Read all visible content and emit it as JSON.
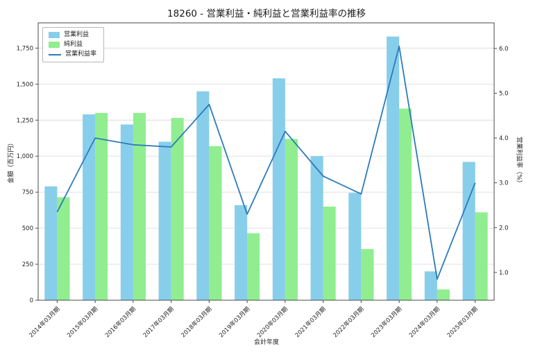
{
  "chart_data": {
    "type": "bar",
    "title": "18260 - 営業利益・純利益と営業利益率の推移",
    "xlabel": "会計年度",
    "ylabel_left": "金額（百万円）",
    "ylabel_right": "営業利益率（%）",
    "categories": [
      "2014年03月期",
      "2015年03月期",
      "2016年03月期",
      "2017年03月期",
      "2018年03月期",
      "2019年03月期",
      "2020年03月期",
      "2021年03月期",
      "2022年03月期",
      "2023年03月期",
      "2024年03月期",
      "2025年03月期"
    ],
    "bar_series": [
      {
        "name": "営業利益",
        "color": "#87ceeb",
        "values": [
          790,
          1290,
          1220,
          1100,
          1450,
          660,
          1540,
          1000,
          745,
          1830,
          200,
          960
        ]
      },
      {
        "name": "純利益",
        "color": "#90ee90",
        "values": [
          715,
          1300,
          1300,
          1265,
          1070,
          465,
          1120,
          650,
          355,
          1330,
          75,
          610
        ]
      }
    ],
    "line_series": {
      "name": "営業利益率",
      "color": "#2b7bba",
      "values": [
        2.35,
        4.0,
        3.85,
        3.8,
        4.75,
        2.3,
        4.15,
        3.15,
        2.75,
        6.05,
        0.85,
        3.0
      ]
    },
    "ylim_left": [
      0,
      1925
    ],
    "ylim_right": [
      0.38,
      6.57
    ],
    "yticks_left": [
      0,
      250,
      500,
      750,
      1000,
      1250,
      1500,
      1750
    ],
    "yticks_right": [
      1.0,
      2.0,
      3.0,
      4.0,
      5.0,
      6.0
    ],
    "grid": true,
    "legend_position": "upper left"
  }
}
